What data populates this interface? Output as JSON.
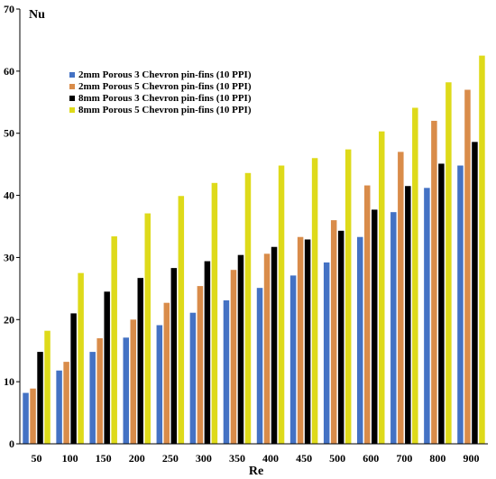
{
  "chart_data": {
    "type": "bar",
    "xlabel": "Re",
    "ylabel": "Nu",
    "ylim": [
      0,
      70
    ],
    "yticks": [
      0,
      10,
      20,
      30,
      40,
      50,
      60,
      70
    ],
    "categories": [
      "50",
      "100",
      "150",
      "200",
      "250",
      "300",
      "350",
      "400",
      "450",
      "500",
      "600",
      "700",
      "800",
      "900"
    ],
    "grid": false,
    "legend_position": "top-left",
    "series": [
      {
        "name": "2mm Porous 3 Chevron pin-fins (10 PPI)",
        "color": "#4472C4",
        "values": [
          8.2,
          11.8,
          14.8,
          17.1,
          19.1,
          21.1,
          23.1,
          25.1,
          27.1,
          29.2,
          33.3,
          37.3,
          41.2,
          44.8
        ]
      },
      {
        "name": "2mm Porous 5 Chevron pin-fins (10 PPI)",
        "color": "#D98C4A",
        "values": [
          8.9,
          13.2,
          17.0,
          20.0,
          22.7,
          25.4,
          28.0,
          30.6,
          33.3,
          36.0,
          41.6,
          47.0,
          52.0,
          57.0
        ]
      },
      {
        "name": "8mm Porous 3 Chevron pin-fins (10 PPI)",
        "color": "#000000",
        "values": [
          14.8,
          21.0,
          24.5,
          26.7,
          28.3,
          29.4,
          30.4,
          31.7,
          32.9,
          34.3,
          37.7,
          41.5,
          45.1,
          48.6
        ]
      },
      {
        "name": "8mm Porous 5 Chevron pin-fins (10 PPI)",
        "color": "#DEDA1A",
        "values": [
          18.2,
          27.5,
          33.4,
          37.1,
          39.9,
          42.0,
          43.6,
          44.8,
          46.0,
          47.4,
          50.3,
          54.1,
          58.2,
          62.5
        ]
      }
    ]
  }
}
